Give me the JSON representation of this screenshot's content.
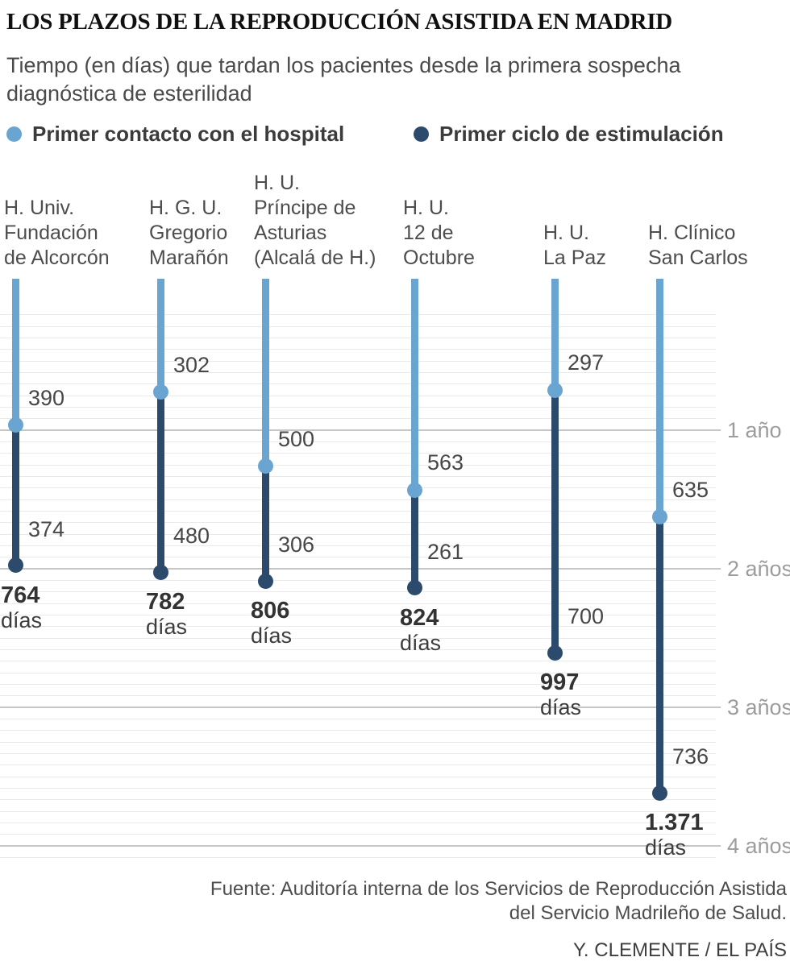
{
  "title": "LOS PLAZOS DE LA REPRODUCCIÓN ASISTIDA EN MADRID",
  "subtitle_lines": [
    "Tiempo (en días) que tardan los pacientes desde la primera sospecha",
    "diagnóstica de esterilidad"
  ],
  "legend": {
    "items": [
      {
        "label": "Primer contacto con el hospital",
        "color": "#6aa5d2"
      },
      {
        "label": "Primer ciclo de estimulación",
        "color": "#2c4a6b"
      }
    ]
  },
  "colors": {
    "contact": "#6aa5d2",
    "cycle": "#2c4a6b",
    "gridline": "#eaeaea",
    "gridline_year": "#c6c6c6",
    "year_label": "#9c9c9c"
  },
  "chart_data": {
    "type": "bar",
    "subtype": "vertical-dropline-stacked",
    "unit": "días",
    "title": "LOS PLAZOS DE LA REPRODUCCIÓN ASISTIDA EN MADRID",
    "series": [
      {
        "name": "Primer contacto con el hospital",
        "values": [
          390,
          302,
          500,
          563,
          297,
          635
        ]
      },
      {
        "name": "Primer ciclo de estimulación",
        "values": [
          374,
          480,
          306,
          261,
          700,
          736
        ]
      }
    ],
    "categories": [
      "H. Univ. Fundación de Alcorcón",
      "H. G. U. Gregorio Marañón",
      "H. U. Príncipe de Asturias (Alcalá de H.)",
      "H. U. 12 de Octubre",
      "H. U. La Paz",
      "H. Clínico San Carlos"
    ],
    "category_lines": [
      [
        "H. Univ.",
        "Fundación",
        "de Alcorcón"
      ],
      [
        "H. G. U.",
        "Gregorio",
        "Marañón"
      ],
      [
        "H. U.",
        "Príncipe de",
        "Asturias",
        "(Alcalá de H.)"
      ],
      [
        "H. U.",
        "12 de",
        "Octubre"
      ],
      [
        "H. U.",
        "La Paz"
      ],
      [
        "H. Clínico",
        "San Carlos"
      ]
    ],
    "totals": [
      764,
      782,
      806,
      824,
      997,
      1371
    ],
    "total_labels": [
      "764",
      "782",
      "806",
      "824",
      "997",
      "1.371"
    ],
    "total_suffix": "días",
    "y_axis": {
      "tick_labels": [
        "1 año",
        "2 años",
        "3 años",
        "4 años"
      ],
      "tick_days": [
        365,
        730,
        1095,
        1460
      ],
      "days_per_year": 365,
      "direction": "downward",
      "range_days": [
        0,
        1500
      ],
      "grid": "monthly"
    },
    "legend_position": "top"
  },
  "source_lines": [
    "Fuente: Auditoría interna de los Servicios de Reproducción Asistida",
    "del Servicio Madrileño de Salud."
  ],
  "credit": "Y. CLEMENTE / EL PAÍS"
}
